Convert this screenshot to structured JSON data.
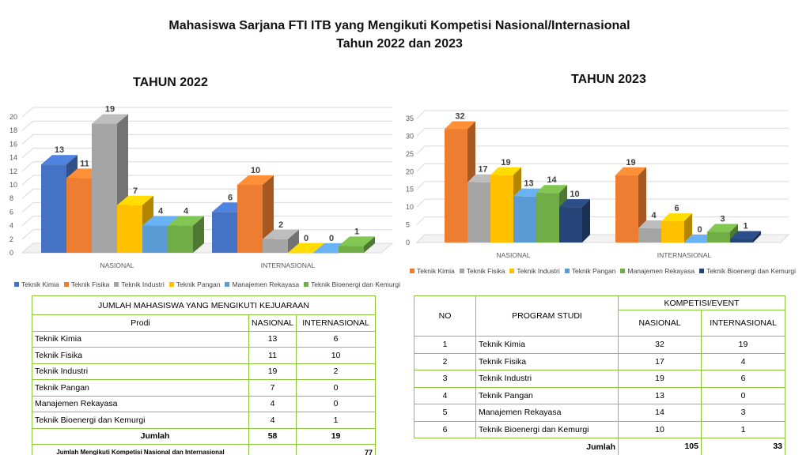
{
  "header": {
    "title_line1": "Mahasiswa Sarjana FTI ITB yang Mengikuti Kompetisi Nasional/Internasional",
    "title_line2": "Tahun  2022 dan 2023"
  },
  "colors": {
    "Teknik Kimia_2022": "#4472c4",
    "Teknik Fisika_2022": "#ed7d31",
    "Teknik Industri_2022": "#a5a5a5",
    "Teknik Pangan_2022": "#ffc000",
    "Manajemen Rekayasa_2022": "#5b9bd5",
    "Teknik Bioenergi dan Kemurgi_2022": "#70ad47",
    "Teknik Kimia_2023": "#ed7d31",
    "Teknik Fisika_2023": "#a5a5a5",
    "Teknik Industri_2023": "#ffc000",
    "Teknik Pangan_2023": "#5b9bd5",
    "Manajemen Rekayasa_2023": "#70ad47",
    "Teknik Bioenergi dan Kemurgi_2023": "#264478"
  },
  "chart_data": [
    {
      "type": "bar",
      "title": "TAHUN 2022",
      "categories": [
        "NASIONAL",
        "INTERNASIONAL"
      ],
      "series": [
        {
          "name": "Teknik Kimia",
          "values": [
            13,
            6
          ]
        },
        {
          "name": "Teknik Fisika",
          "values": [
            11,
            10
          ]
        },
        {
          "name": "Teknik Industri",
          "values": [
            19,
            2
          ]
        },
        {
          "name": "Teknik Pangan",
          "values": [
            7,
            0
          ]
        },
        {
          "name": "Manajemen Rekayasa",
          "values": [
            4,
            0
          ]
        },
        {
          "name": "Teknik Bioenergi dan Kemurgi",
          "values": [
            4,
            1
          ]
        }
      ],
      "yticks": [
        "0",
        "2",
        "4",
        "6",
        "8",
        "10",
        "12",
        "14",
        "16",
        "18",
        "20"
      ],
      "ylim": [
        0,
        20
      ],
      "grid": true,
      "legend_position": "bottom",
      "three_d": true
    },
    {
      "type": "bar",
      "title": "TAHUN 2023",
      "categories": [
        "NASIONAL",
        "INTERNASIONAL"
      ],
      "series": [
        {
          "name": "Teknik Kimia",
          "values": [
            32,
            19
          ]
        },
        {
          "name": "Teknik Fisika",
          "values": [
            17,
            4
          ]
        },
        {
          "name": "Teknik Industri",
          "values": [
            19,
            6
          ]
        },
        {
          "name": "Teknik Pangan",
          "values": [
            13,
            0
          ]
        },
        {
          "name": "Manajemen Rekayasa",
          "values": [
            14,
            3
          ]
        },
        {
          "name": "Teknik Bioenergi dan Kemurgi",
          "values": [
            10,
            1
          ]
        }
      ],
      "yticks": [
        "0",
        "5",
        "10",
        "15",
        "20",
        "25",
        "30",
        "35"
      ],
      "ylim": [
        0,
        35
      ],
      "grid": true,
      "legend_position": "bottom",
      "three_d": true
    }
  ],
  "table2022": {
    "caption": "JUMLAH MAHASISWA YANG MENGIKUTI KEJUARAAN",
    "headers": [
      "Prodi",
      "NASIONAL",
      "INTERNASIONAL"
    ],
    "rows": [
      [
        "Teknik Kimia",
        "13",
        "6"
      ],
      [
        "Teknik Fisika",
        "11",
        "10"
      ],
      [
        "Teknik Industri",
        "19",
        "2"
      ],
      [
        "Teknik Pangan",
        "7",
        "0"
      ],
      [
        "Manajemen Rekayasa",
        "4",
        "0"
      ],
      [
        "Teknik Bioenergi dan Kemurgi",
        "4",
        "1"
      ]
    ],
    "total_label": "Jumlah",
    "total_nasional": "58",
    "total_internasional": "19",
    "grand_label": "Jumlah Mengikuti Kompetisi Nasional dan Internasional",
    "grand_total": "77"
  },
  "table2023": {
    "headers": {
      "no": "NO",
      "prodi": "PROGRAM STUDI",
      "group": "KOMPETISI/EVENT",
      "nasional": "NASIONAL",
      "internasional": "INTERNASIONAL"
    },
    "rows": [
      [
        "1",
        "Teknik Kimia",
        "32",
        "19"
      ],
      [
        "2",
        "Teknik Fisika",
        "17",
        "4"
      ],
      [
        "3",
        "Teknik Industri",
        "19",
        "6"
      ],
      [
        "4",
        "Teknik Pangan",
        "13",
        "0"
      ],
      [
        "5",
        "Manajemen Rekayasa",
        "14",
        "3"
      ],
      [
        "6",
        "Teknik Bioenergi dan Kemurgi",
        "10",
        "1"
      ]
    ],
    "total_label": "Jumlah",
    "total_nasional": "105",
    "total_internasional": "33"
  }
}
